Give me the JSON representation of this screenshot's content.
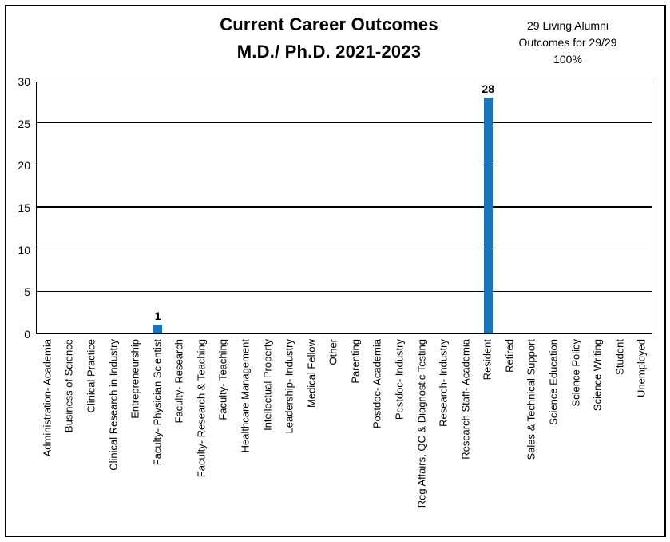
{
  "header": {
    "title_line1": "Current Career Outcomes",
    "title_line2": "M.D./ Ph.D. 2021-2023",
    "annotation_line1": "29 Living Alumni",
    "annotation_line2": "Outcomes for 29/29",
    "annotation_line3": "100%"
  },
  "chart_data": {
    "type": "bar",
    "title": "Current Career Outcomes M.D./ Ph.D. 2021-2023",
    "annotation": "29 Living Alumni Outcomes for 29/29 100%",
    "categories": [
      "Administration- Academia",
      "Business of Science",
      "Clinical Practice",
      "Clinical Research in Industry",
      "Entrepreneurship",
      "Faculty- Physician Scientist",
      "Faculty- Research",
      "Faculty- Research & Teaching",
      "Faculty- Teaching",
      "Healthcare Management",
      "Intellectual Property",
      "Leadership- Industry",
      "Medical Fellow",
      "Other",
      "Parenting",
      "Postdoc- Academia",
      "Postdoc- Industry",
      "Reg Affairs, QC & Diagnostic Testing",
      "Research- Industry",
      "Research Staff- Academia",
      "Resident",
      "Retired",
      "Sales & Technical Support",
      "Science Education",
      "Science Policy",
      "Science Writing",
      "Student",
      "Unemployed"
    ],
    "values": [
      0,
      0,
      0,
      0,
      0,
      1,
      0,
      0,
      0,
      0,
      0,
      0,
      0,
      0,
      0,
      0,
      0,
      0,
      0,
      0,
      28,
      0,
      0,
      0,
      0,
      0,
      0,
      0
    ],
    "xlabel": "",
    "ylabel": "",
    "ylim": [
      0,
      30
    ],
    "yticks": [
      0,
      5,
      10,
      15,
      20,
      25,
      30
    ],
    "grid": true,
    "legend": false,
    "data_labels": true,
    "bar_color": "#1b75bc",
    "grid_color": "#000000",
    "text_color": "#000000"
  }
}
